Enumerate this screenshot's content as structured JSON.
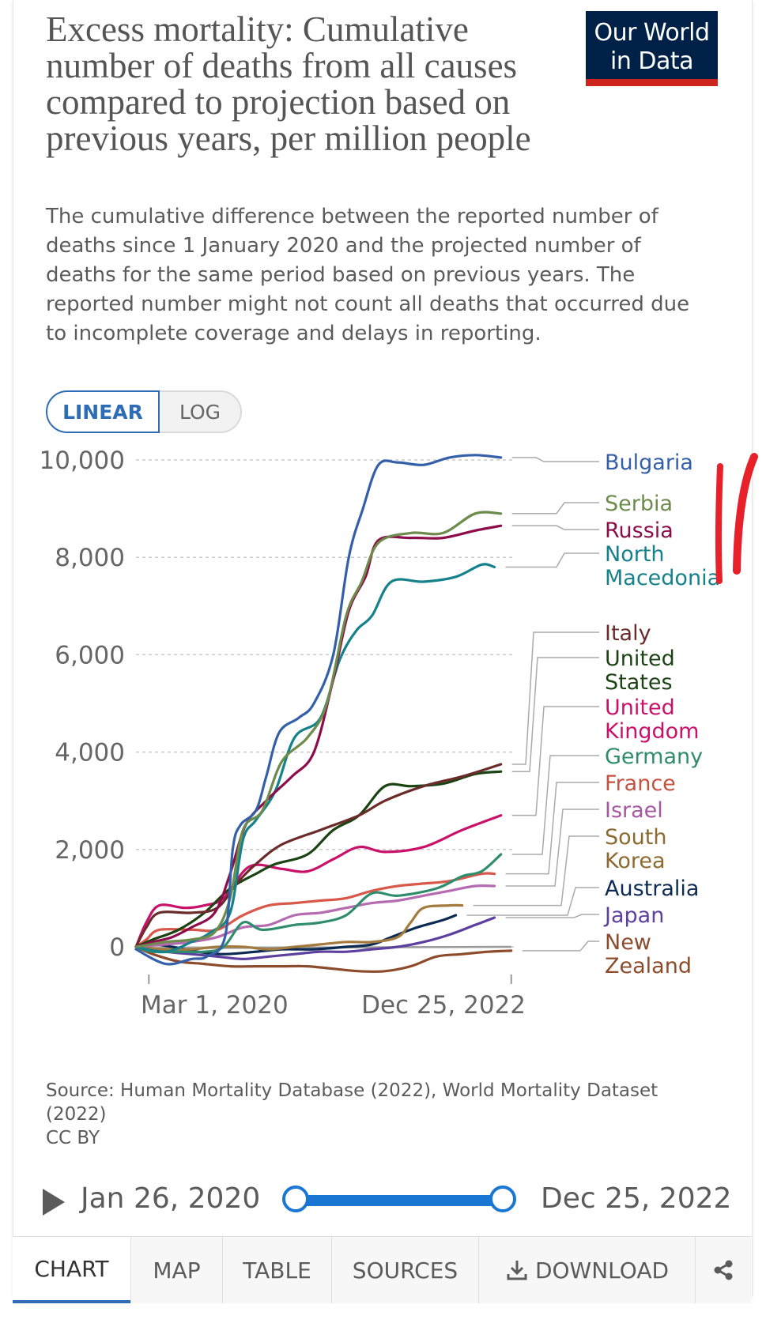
{
  "title": "Excess mortality: Cumulative number of deaths from all causes compared to projection based on previous years, per million people",
  "subtitle": "The cumulative difference between the reported number of deaths since 1 January 2020 and the projected number of deaths for the same period based on previous years. The reported number might not count all deaths that occurred due to incomplete coverage and delays in reporting.",
  "logo": {
    "line1": "Our World",
    "line2": "in Data"
  },
  "scale_toggle": {
    "linear": "LINEAR",
    "log": "LOG",
    "selected": "LINEAR"
  },
  "source": {
    "text": "Source: Human Mortality Database (2022), World Mortality Dataset (2022)",
    "license": "CC BY"
  },
  "timeline": {
    "start": "Jan 26, 2020",
    "end": "Dec 25, 2022"
  },
  "tabs": {
    "chart": "CHART",
    "map": "MAP",
    "table": "TABLE",
    "sources": "SOURCES",
    "download": "DOWNLOAD"
  },
  "icons": [
    "play-icon",
    "download-icon",
    "share-icon"
  ],
  "colors": {
    "accent": "#2d6db5",
    "logo_bg": "#002147",
    "logo_bar": "#ce261e",
    "annotation": "#e8202a"
  },
  "chart_data": {
    "type": "line",
    "title": "Excess mortality: Cumulative number of deaths from all causes compared to projection based on previous years, per million people",
    "x_tick_labels": [
      "Mar 1, 2020",
      "Dec 25, 2022"
    ],
    "x_domain": [
      2020.07,
      2023.0
    ],
    "x_tick_positions": [
      2020.17,
      2022.98
    ],
    "y_ticks": [
      0,
      2000,
      4000,
      6000,
      8000,
      10000
    ],
    "y_tick_labels": [
      "0",
      "2,000",
      "4,000",
      "6,000",
      "8,000",
      "10,000"
    ],
    "ylim": [
      -600,
      10000
    ],
    "grid": true,
    "legend": "right-labels",
    "series": [
      {
        "name": "Bulgaria",
        "color": "#3360a9",
        "x": [
          2020.07,
          2020.3,
          2020.5,
          2020.62,
          2020.76,
          2020.82,
          2020.88,
          2021.0,
          2021.08,
          2021.18,
          2021.33,
          2021.45,
          2021.6,
          2021.72,
          2021.83,
          2021.95,
          2022.1,
          2022.3,
          2022.5,
          2022.7,
          2022.9
        ],
        "values": [
          -50,
          -350,
          -250,
          -200,
          200,
          2000,
          2500,
          2800,
          3500,
          4400,
          4700,
          5000,
          6000,
          8000,
          9000,
          9900,
          9950,
          9900,
          10050,
          10100,
          10050
        ]
      },
      {
        "name": "Serbia",
        "color": "#6d8b4c",
        "x": [
          2020.07,
          2020.3,
          2020.5,
          2020.68,
          2020.8,
          2020.9,
          2021.05,
          2021.2,
          2021.4,
          2021.55,
          2021.7,
          2021.82,
          2021.95,
          2022.2,
          2022.45,
          2022.7,
          2022.9
        ],
        "values": [
          0,
          100,
          150,
          300,
          1000,
          2400,
          2800,
          3800,
          4300,
          5000,
          6800,
          7500,
          8300,
          8500,
          8500,
          8900,
          8900
        ]
      },
      {
        "name": "Russia",
        "color": "#8c0d4a",
        "x": [
          2020.07,
          2020.2,
          2020.35,
          2020.5,
          2020.68,
          2020.8,
          2020.92,
          2021.08,
          2021.28,
          2021.45,
          2021.6,
          2021.72,
          2021.85,
          2021.95,
          2022.2,
          2022.45,
          2022.7,
          2022.9
        ],
        "values": [
          0,
          100,
          200,
          400,
          700,
          1500,
          2500,
          3000,
          3500,
          4000,
          5500,
          6900,
          7600,
          8350,
          8400,
          8400,
          8550,
          8650
        ]
      },
      {
        "name": "North Macedonia",
        "color": "#15818a",
        "x": [
          2020.07,
          2020.3,
          2020.5,
          2020.65,
          2020.8,
          2020.9,
          2021.0,
          2021.15,
          2021.3,
          2021.5,
          2021.65,
          2021.78,
          2021.9,
          2022.05,
          2022.3,
          2022.55,
          2022.75,
          2022.85
        ],
        "values": [
          0,
          -100,
          100,
          300,
          700,
          2200,
          2600,
          3200,
          4300,
          4700,
          5900,
          6500,
          6800,
          7500,
          7500,
          7600,
          7850,
          7800
        ]
      },
      {
        "name": "Italy",
        "color": "#6b2b2b",
        "x": [
          2020.07,
          2020.15,
          2020.25,
          2020.5,
          2020.7,
          2020.85,
          2021.0,
          2021.2,
          2021.5,
          2021.8,
          2022.0,
          2022.3,
          2022.6,
          2022.9
        ],
        "values": [
          0,
          400,
          700,
          700,
          800,
          1300,
          1700,
          2100,
          2400,
          2700,
          3000,
          3300,
          3500,
          3750
        ]
      },
      {
        "name": "United States",
        "color": "#1b4314",
        "x": [
          2020.07,
          2020.2,
          2020.4,
          2020.6,
          2020.8,
          2021.0,
          2021.15,
          2021.4,
          2021.6,
          2021.8,
          2022.0,
          2022.2,
          2022.45,
          2022.7,
          2022.9
        ],
        "values": [
          0,
          150,
          350,
          700,
          1200,
          1500,
          1700,
          1900,
          2400,
          2700,
          3300,
          3300,
          3350,
          3550,
          3600
        ]
      },
      {
        "name": "United Kingdom",
        "color": "#c9116a",
        "x": [
          2020.07,
          2020.15,
          2020.25,
          2020.45,
          2020.6,
          2020.75,
          2020.95,
          2021.2,
          2021.4,
          2021.6,
          2021.8,
          2022.0,
          2022.3,
          2022.6,
          2022.9
        ],
        "values": [
          0,
          500,
          850,
          800,
          850,
          1000,
          1650,
          1600,
          1550,
          1800,
          2050,
          1950,
          2050,
          2400,
          2700
        ]
      },
      {
        "name": "Germany",
        "color": "#2f8c6c",
        "x": [
          2020.07,
          2020.2,
          2020.4,
          2020.6,
          2020.75,
          2020.9,
          2021.05,
          2021.3,
          2021.5,
          2021.7,
          2021.9,
          2022.1,
          2022.4,
          2022.6,
          2022.75,
          2022.9
        ],
        "values": [
          0,
          -100,
          -100,
          -100,
          0,
          500,
          350,
          450,
          500,
          650,
          1100,
          1050,
          1200,
          1450,
          1550,
          1900
        ]
      },
      {
        "name": "France",
        "color": "#d8594a",
        "x": [
          2020.07,
          2020.15,
          2020.25,
          2020.5,
          2020.7,
          2020.9,
          2021.1,
          2021.3,
          2021.5,
          2021.7,
          2021.9,
          2022.1,
          2022.3,
          2022.5,
          2022.75,
          2022.85
        ],
        "values": [
          0,
          150,
          350,
          350,
          350,
          650,
          850,
          900,
          950,
          1000,
          1150,
          1250,
          1300,
          1350,
          1500,
          1500
        ]
      },
      {
        "name": "Israel",
        "color": "#b56bb0",
        "x": [
          2020.07,
          2020.3,
          2020.5,
          2020.7,
          2020.9,
          2021.1,
          2021.3,
          2021.5,
          2021.7,
          2021.9,
          2022.1,
          2022.3,
          2022.5,
          2022.7,
          2022.85
        ],
        "values": [
          0,
          50,
          100,
          200,
          400,
          450,
          650,
          700,
          800,
          900,
          950,
          1050,
          1150,
          1250,
          1250
        ]
      },
      {
        "name": "South Korea",
        "color": "#a37b3e",
        "x": [
          2020.07,
          2020.3,
          2020.5,
          2020.7,
          2020.9,
          2021.1,
          2021.3,
          2021.5,
          2021.7,
          2021.9,
          2022.1,
          2022.2,
          2022.3,
          2022.5,
          2022.6
        ],
        "values": [
          0,
          -50,
          -50,
          0,
          0,
          -50,
          0,
          50,
          100,
          100,
          200,
          500,
          800,
          850,
          850
        ]
      },
      {
        "name": "Australia",
        "color": "#0c2b52",
        "x": [
          2020.07,
          2020.2,
          2020.35,
          2020.55,
          2020.75,
          2021.0,
          2021.2,
          2021.45,
          2021.7,
          2021.9,
          2022.05,
          2022.25,
          2022.45,
          2022.55
        ],
        "values": [
          0,
          50,
          0,
          -100,
          -150,
          -100,
          -50,
          -50,
          0,
          50,
          200,
          400,
          550,
          650
        ]
      },
      {
        "name": "Japan",
        "color": "#5d3f9e",
        "x": [
          2020.07,
          2020.3,
          2020.5,
          2020.7,
          2020.9,
          2021.1,
          2021.3,
          2021.5,
          2021.7,
          2021.9,
          2022.1,
          2022.3,
          2022.5,
          2022.7,
          2022.85
        ],
        "values": [
          0,
          -100,
          -150,
          -200,
          -250,
          -200,
          -150,
          -100,
          -100,
          -50,
          0,
          100,
          250,
          450,
          600
        ]
      },
      {
        "name": "New Zealand",
        "color": "#8c4b2a",
        "x": [
          2020.07,
          2020.2,
          2020.4,
          2020.6,
          2020.8,
          2021.0,
          2021.2,
          2021.4,
          2021.6,
          2021.8,
          2022.0,
          2022.2,
          2022.4,
          2022.6,
          2022.8,
          2022.98
        ],
        "values": [
          0,
          -150,
          -300,
          -350,
          -400,
          -400,
          -400,
          -400,
          -450,
          -500,
          -500,
          -400,
          -200,
          -150,
          -100,
          -80
        ]
      }
    ],
    "flat_reference_line": {
      "color": "#9a9a9a",
      "x": [
        2020.07,
        2022.98
      ],
      "values": [
        -30,
        0
      ]
    }
  }
}
